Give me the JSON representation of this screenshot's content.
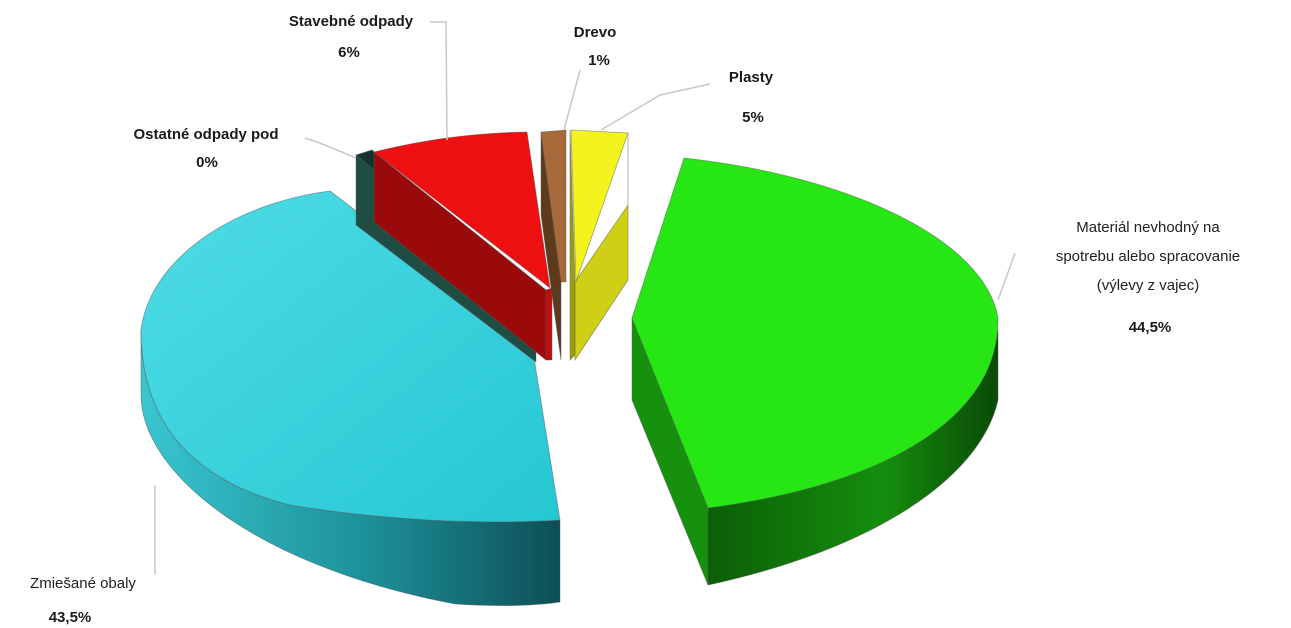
{
  "chart_data": {
    "type": "pie",
    "style": "3d-exploded",
    "slices": [
      {
        "name": "Plasty",
        "value": 5,
        "label": "5%",
        "color": "#f3f31e"
      },
      {
        "name": "Materiál nevhodný na spotrebu alebo spracovanie (výlevy z vajec)",
        "name_lines": [
          "Materiál nevhodný na",
          "spotrebu alebo spracovanie",
          "(výlevy z vajec)"
        ],
        "value": 44.5,
        "label": "44,5%",
        "color": "#26e614"
      },
      {
        "name": "Zmiešané obaly",
        "value": 43.5,
        "label": "43,5%",
        "color": "#2ccfda"
      },
      {
        "name": "Ostatné odpady pod",
        "value": 0,
        "label": "0%",
        "color": "#1c4a40"
      },
      {
        "name": "Stavebné odpady",
        "value": 6,
        "label": "6%",
        "color": "#ee1010"
      },
      {
        "name": "Drevo",
        "value": 1,
        "label": "1%",
        "color": "#a66a3a"
      }
    ]
  }
}
